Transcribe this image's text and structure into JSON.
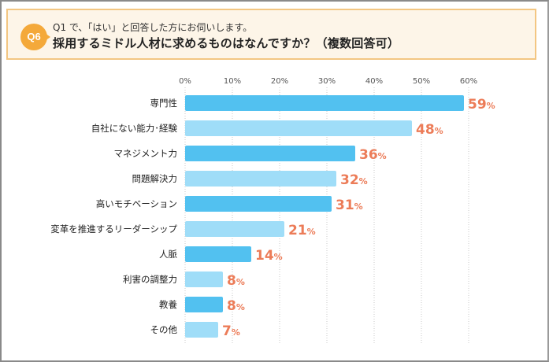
{
  "header": {
    "badge": "Q6",
    "subtitle": "Q1 で、「はい」と回答した方にお伺いします。",
    "title": "採用するミドル人材に求めるものはなんですか？（複数回答可）"
  },
  "colors": {
    "bar_dark": "#52c1f0",
    "bar_light": "#9fddf8",
    "value_label": "#ec7c58",
    "badge": "#f4a93a",
    "header_border": "#f3c682",
    "header_bg": "#fdf5e8"
  },
  "chart_data": {
    "type": "bar",
    "orientation": "horizontal",
    "title": "採用するミドル人材に求めるものはなんですか？（複数回答可）",
    "categories": [
      "専門性",
      "自社にない能力･経験",
      "マネジメント力",
      "問題解決力",
      "高いモチベーション",
      "変革を推進するリーダーシップ",
      "人脈",
      "利害の調整力",
      "教養",
      "その他"
    ],
    "values": [
      59,
      48,
      36,
      32,
      31,
      21,
      14,
      8,
      8,
      7
    ],
    "value_labels": [
      "59",
      "48",
      "36",
      "32",
      "31",
      "21",
      "14",
      "8",
      "8",
      "7"
    ],
    "value_unit": "%",
    "xlim": [
      0,
      60
    ],
    "xticks": [
      0,
      10,
      20,
      30,
      40,
      50,
      60
    ],
    "xtick_labels": [
      "0%",
      "10%",
      "20%",
      "30%",
      "40%",
      "50%",
      "60%"
    ],
    "xlabel": "",
    "ylabel": "",
    "grid": "vertical-dotted",
    "legend": "none"
  }
}
